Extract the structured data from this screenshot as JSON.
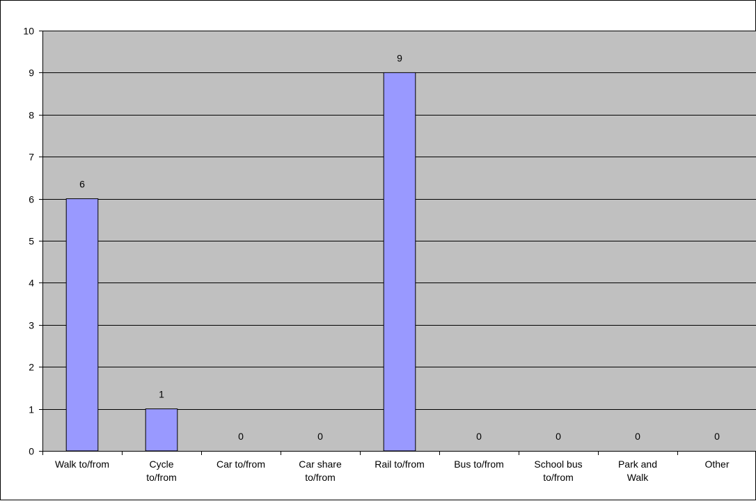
{
  "chart_data": {
    "type": "bar",
    "title": "",
    "xlabel": "",
    "ylabel": "",
    "categories": [
      [
        "Walk to/from"
      ],
      [
        "Cycle",
        "to/from"
      ],
      [
        "Car to/from"
      ],
      [
        "Car share",
        "to/from"
      ],
      [
        "Rail to/from"
      ],
      [
        "Bus to/from"
      ],
      [
        "School bus",
        "to/from"
      ],
      [
        "Park and",
        "Walk"
      ],
      [
        "Other"
      ]
    ],
    "values": [
      6,
      1,
      0,
      0,
      9,
      0,
      0,
      0,
      0
    ],
    "ylim": [
      0,
      10
    ],
    "yticks": [
      0,
      1,
      2,
      3,
      4,
      5,
      6,
      7,
      8,
      9,
      10
    ],
    "grid": true,
    "legend": "none",
    "data_labels": true,
    "colors": {
      "plot_background": "#C0C0C0",
      "bar_fill": "#9999FF",
      "bar_stroke": "#000000",
      "gridline": "#000000"
    }
  }
}
